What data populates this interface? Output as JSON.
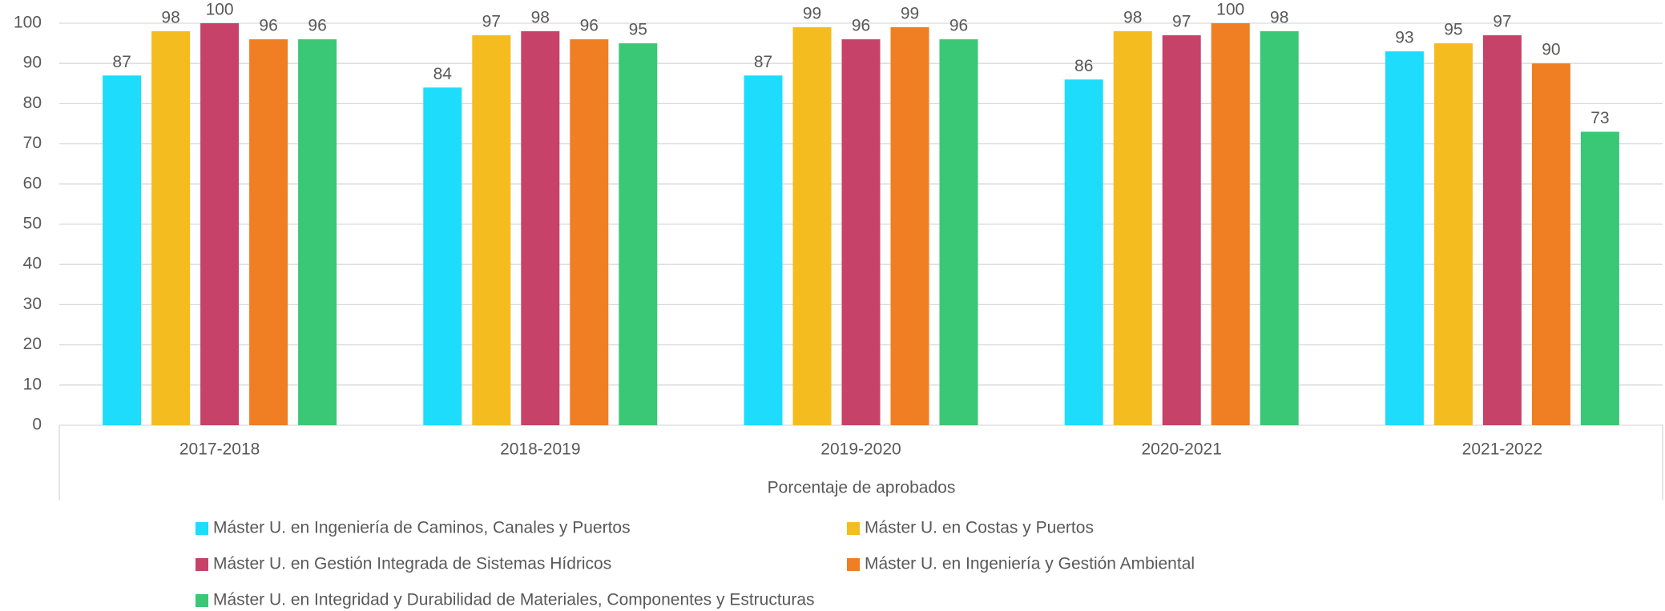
{
  "chart_data": {
    "type": "bar",
    "x_label": "Porcentaje de aprobados",
    "categories": [
      "2017-2018",
      "2018-2019",
      "2019-2020",
      "2020-2021",
      "2021-2022"
    ],
    "series": [
      {
        "name": "Máster U. en Ingeniería de Caminos, Canales y Puertos",
        "color": "#1ddcfc",
        "values": [
          87,
          84,
          87,
          86,
          93
        ]
      },
      {
        "name": "Máster U. en Costas y Puertos",
        "color": "#f5bc1f",
        "values": [
          98,
          97,
          99,
          98,
          95
        ]
      },
      {
        "name": "Máster U. en Gestión Integrada de Sistemas Hídricos",
        "color": "#c74268",
        "values": [
          100,
          98,
          96,
          97,
          97
        ]
      },
      {
        "name": "Máster U. en Ingeniería y Gestión Ambiental",
        "color": "#f07e22",
        "values": [
          96,
          96,
          99,
          100,
          90
        ]
      },
      {
        "name": "Máster U. en Integridad y Durabilidad de Materiales, Componentes y Estructuras",
        "color": "#3ac776",
        "values": [
          96,
          95,
          96,
          98,
          73
        ]
      }
    ],
    "ylim": [
      0,
      100
    ],
    "yticks": [
      0,
      10,
      20,
      30,
      40,
      50,
      60,
      70,
      80,
      90,
      100
    ],
    "grid": true
  }
}
